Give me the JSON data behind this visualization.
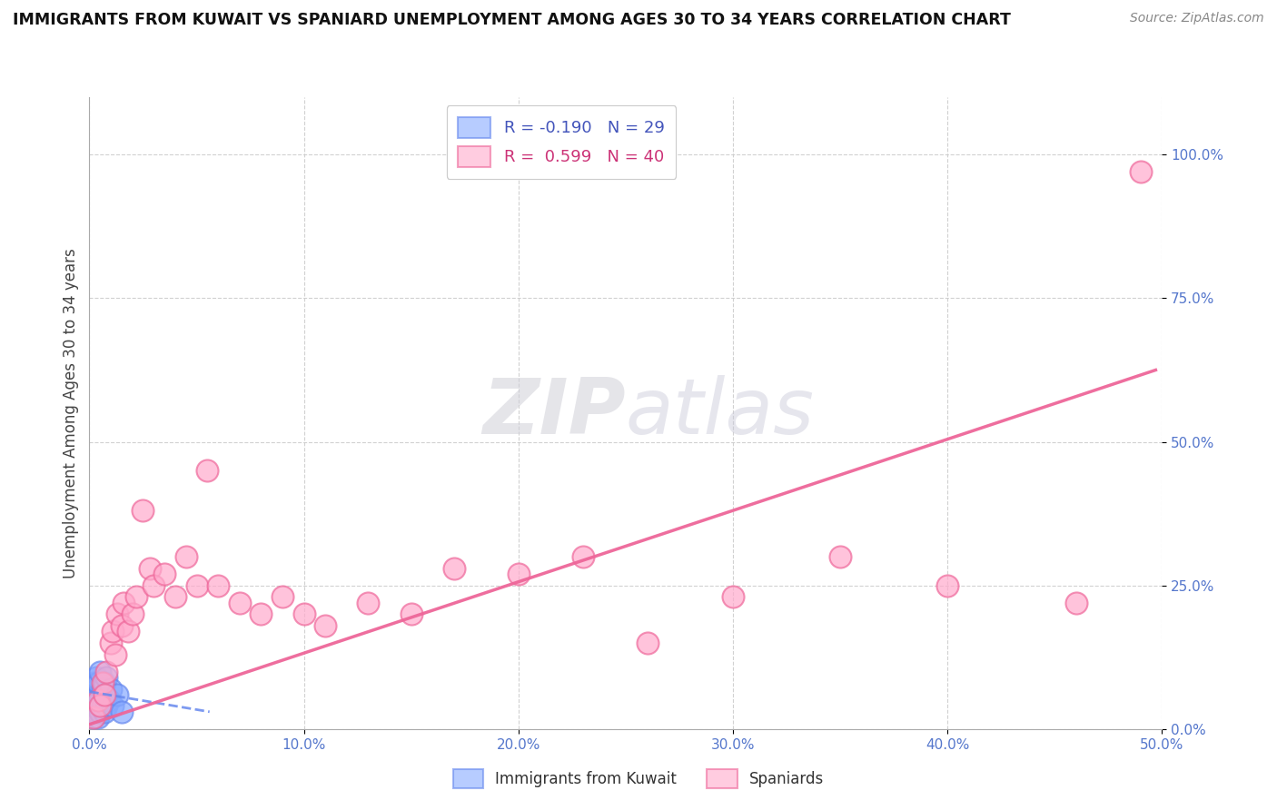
{
  "title": "IMMIGRANTS FROM KUWAIT VS SPANIARD UNEMPLOYMENT AMONG AGES 30 TO 34 YEARS CORRELATION CHART",
  "source": "Source: ZipAtlas.com",
  "ylabel": "Unemployment Among Ages 30 to 34 years",
  "xlim": [
    0.0,
    0.5
  ],
  "ylim": [
    0.0,
    1.1
  ],
  "xticks": [
    0.0,
    0.1,
    0.2,
    0.3,
    0.4,
    0.5
  ],
  "yticks": [
    0.0,
    0.25,
    0.5,
    0.75,
    1.0
  ],
  "xtick_labels": [
    "0.0%",
    "10.0%",
    "20.0%",
    "30.0%",
    "40.0%",
    "50.0%"
  ],
  "ytick_labels": [
    "0.0%",
    "25.0%",
    "50.0%",
    "75.0%",
    "100.0%"
  ],
  "blue_R": "-0.190",
  "blue_N": "29",
  "pink_R": "0.599",
  "pink_N": "40",
  "blue_color": "#88aaff",
  "blue_edge_color": "#6688ee",
  "pink_color": "#ffaacc",
  "pink_edge_color": "#ee6699",
  "tick_color": "#5577cc",
  "watermark_zip": "ZIP",
  "watermark_atlas": "atlas",
  "blue_points_x": [
    0.001,
    0.001,
    0.001,
    0.002,
    0.002,
    0.002,
    0.002,
    0.003,
    0.003,
    0.003,
    0.003,
    0.004,
    0.004,
    0.004,
    0.005,
    0.005,
    0.005,
    0.006,
    0.006,
    0.007,
    0.007,
    0.007,
    0.008,
    0.008,
    0.009,
    0.01,
    0.011,
    0.013,
    0.015
  ],
  "blue_points_y": [
    0.03,
    0.05,
    0.07,
    0.02,
    0.04,
    0.06,
    0.08,
    0.03,
    0.05,
    0.07,
    0.09,
    0.02,
    0.06,
    0.08,
    0.03,
    0.05,
    0.1,
    0.04,
    0.07,
    0.03,
    0.06,
    0.08,
    0.04,
    0.09,
    0.05,
    0.07,
    0.04,
    0.06,
    0.03
  ],
  "pink_points_x": [
    0.002,
    0.004,
    0.005,
    0.006,
    0.007,
    0.008,
    0.01,
    0.011,
    0.012,
    0.013,
    0.015,
    0.016,
    0.018,
    0.02,
    0.022,
    0.025,
    0.028,
    0.03,
    0.035,
    0.04,
    0.045,
    0.05,
    0.055,
    0.06,
    0.07,
    0.08,
    0.09,
    0.1,
    0.11,
    0.13,
    0.15,
    0.17,
    0.2,
    0.23,
    0.26,
    0.3,
    0.35,
    0.4,
    0.46,
    0.49
  ],
  "pink_points_y": [
    0.02,
    0.05,
    0.04,
    0.08,
    0.06,
    0.1,
    0.15,
    0.17,
    0.13,
    0.2,
    0.18,
    0.22,
    0.17,
    0.2,
    0.23,
    0.38,
    0.28,
    0.25,
    0.27,
    0.23,
    0.3,
    0.25,
    0.45,
    0.25,
    0.22,
    0.2,
    0.23,
    0.2,
    0.18,
    0.22,
    0.2,
    0.28,
    0.27,
    0.3,
    0.15,
    0.23,
    0.3,
    0.25,
    0.22,
    0.97
  ],
  "blue_trend_x0": 0.0,
  "blue_trend_x1": 0.056,
  "blue_trend_y0": 0.065,
  "blue_trend_y1": 0.03,
  "pink_trend_x0": 0.0,
  "pink_trend_x1": 0.497,
  "pink_trend_y0": 0.008,
  "pink_trend_y1": 0.625,
  "marker_size": 300,
  "marker_lw": 1.5,
  "alpha_fill": 0.15,
  "alpha_edge": 0.7
}
